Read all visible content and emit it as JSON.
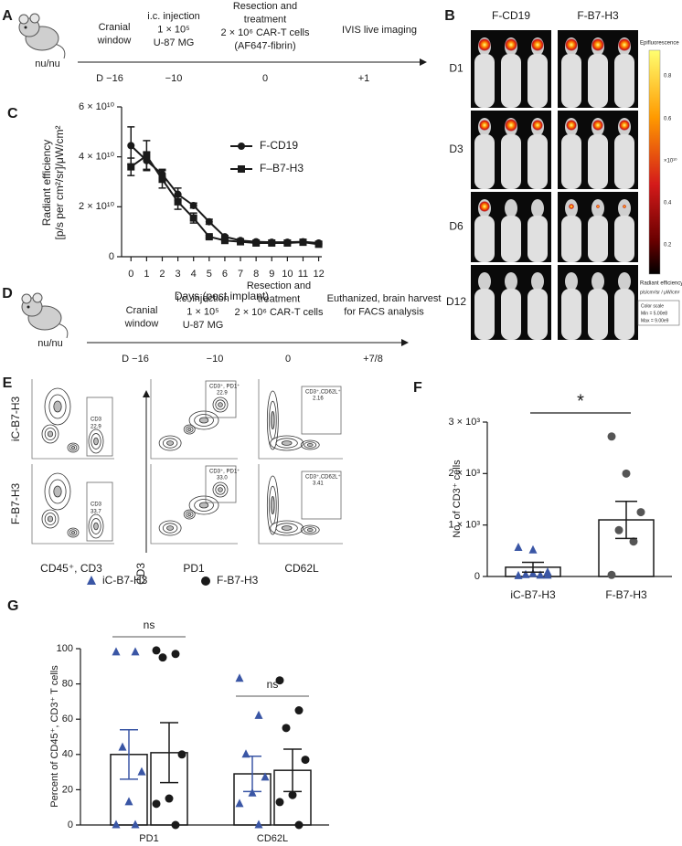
{
  "panels": {
    "A": {
      "label": "A",
      "strain": "nu/nu",
      "steps": [
        {
          "lines": [
            "Cranial",
            "window"
          ],
          "day": "D −16"
        },
        {
          "lines": [
            "i.c. injection",
            "1 × 10⁵",
            "U-87 MG"
          ],
          "day": "−10"
        },
        {
          "lines": [
            "Resection and",
            "treatment",
            "2 × 10⁶ CAR-T cells",
            "(AF647-fibrin)"
          ],
          "day": "0"
        },
        {
          "lines": [
            "IVIS live imaging"
          ],
          "day": "+1"
        }
      ]
    },
    "B": {
      "label": "B",
      "columns": [
        "F-CD19",
        "F-B7-H3"
      ],
      "rows": [
        "D1",
        "D3",
        "D6",
        "D12"
      ],
      "colorbar": {
        "title": "Epifluorescence",
        "ticks": [
          "0.8",
          "0.6",
          "0.4",
          "0.2"
        ],
        "multiplier": "×10¹⁰",
        "unit_title": "Radiant efficiency",
        "unit": "p/s/cm²/sr / μW/cm²",
        "scale_title": "Color scale",
        "min": "Min = 5.00e8",
        "max": "Max = 9.00e9"
      }
    },
    "D": {
      "label": "D",
      "strain": "nu/nu",
      "steps": [
        {
          "lines": [
            "Cranial",
            "window"
          ],
          "day": "D −16"
        },
        {
          "lines": [
            "i.c. injection",
            "1 × 10⁵",
            "U-87 MG"
          ],
          "day": "−10"
        },
        {
          "lines": [
            "Resection and",
            "treatment",
            "2 × 10⁶ CAR-T cells"
          ],
          "day": "0"
        },
        {
          "lines": [
            "Euthanized, brain harvest",
            "for FACS analysis"
          ],
          "day": "+7/8"
        }
      ]
    },
    "E": {
      "label": "E",
      "rows": [
        "iC-B7-H3",
        "F-B7-H3"
      ],
      "x_labels": [
        "CD45⁺, CD3",
        "PD1",
        "CD62L"
      ],
      "y_label": "CD3",
      "gates": [
        [
          {
            "name": "CD3",
            "value": "22.9"
          },
          {
            "name": "CD3⁺, PD1⁺",
            "value": "22.9"
          },
          {
            "name": "CD3⁺,CD62L⁺",
            "value": "2.16"
          }
        ],
        [
          {
            "name": "CD3",
            "value": "33.7"
          },
          {
            "name": "CD3⁺, PD1⁺",
            "value": "33.0"
          },
          {
            "name": "CD3⁺,CD62L⁺",
            "value": "3.41"
          }
        ]
      ]
    }
  },
  "chart_data": [
    {
      "type": "line",
      "panel_label": "C",
      "x_label": "Days (post implant)",
      "y_label": [
        "Radiant efficiency",
        "[p/s per cm²/sr]/μW/cm²"
      ],
      "x": [
        0,
        1,
        2,
        3,
        4,
        5,
        6,
        7,
        8,
        9,
        10,
        11,
        12
      ],
      "xlim": [
        -0.6,
        12.2
      ],
      "xticks": [
        0,
        1,
        2,
        3,
        4,
        5,
        6,
        7,
        8,
        9,
        10,
        11,
        12
      ],
      "ylim": [
        0,
        60000000000
      ],
      "yticks": [
        0,
        {
          "value": 20000000000,
          "label": "2 × 10¹⁰"
        },
        {
          "value": 40000000000,
          "label": "4 × 10¹⁰"
        },
        {
          "value": 60000000000,
          "label": "6 × 10¹⁰"
        }
      ],
      "series": [
        {
          "name": "F-CD19",
          "color": "#1a1a1a",
          "marker": "circle",
          "values": [
            44500000000,
            38500000000,
            33000000000,
            25000000000,
            20500000000,
            14000000000,
            8000000000,
            6500000000,
            6000000000,
            5800000000,
            5800000000,
            6000000000,
            5500000000
          ],
          "errors": [
            7500000000,
            3500000000,
            2000000000,
            2500000000,
            1000000000,
            1000000000,
            500000000,
            500000000,
            300000000,
            300000000,
            300000000,
            500000000,
            500000000
          ]
        },
        {
          "name": "F–B7-H3",
          "color": "#1a1a1a",
          "marker": "square",
          "values": [
            36000000000,
            40500000000,
            31000000000,
            22000000000,
            15500000000,
            8000000000,
            6500000000,
            6000000000,
            5500000000,
            5500000000,
            5500000000,
            5800000000,
            5000000000
          ],
          "errors": [
            3500000000,
            6000000000,
            3500000000,
            3000000000,
            2000000000,
            500000000,
            500000000,
            300000000,
            300000000,
            300000000,
            300000000,
            300000000,
            300000000
          ]
        }
      ]
    },
    {
      "type": "bar-dot",
      "panel_label": "F",
      "y_label": "No. of CD3⁺ cells",
      "annotation": "*",
      "categories": [
        "iC-B7-H3",
        "F-B7-H3"
      ],
      "values": [
        180,
        1100
      ],
      "errors": [
        95,
        360
      ],
      "points": [
        [
          560,
          510,
          80,
          30,
          20,
          10,
          50,
          20
        ],
        [
          2720,
          2000,
          1250,
          900,
          680,
          30
        ]
      ],
      "point_colors": [
        "#3a56a5",
        "#555555"
      ],
      "point_markers": [
        "triangle",
        "circle"
      ],
      "ylim": [
        0,
        3000
      ],
      "yticks": [
        0,
        {
          "value": 1000,
          "label": "1 × 10³"
        },
        {
          "value": 2000,
          "label": "2 × 10³"
        },
        {
          "value": 3000,
          "label": "3 × 10³"
        }
      ]
    },
    {
      "type": "grouped-bar-dot",
      "panel_label": "G",
      "y_label": "Percent of CD45⁺, CD3⁺ T cells",
      "categories": [
        "PD1",
        "CD62L"
      ],
      "annotations": [
        "ns",
        "ns"
      ],
      "ylim": [
        0,
        100
      ],
      "yticks": [
        0,
        20,
        40,
        60,
        80,
        100
      ],
      "series": [
        {
          "name": "iC-B7-H3",
          "color": "#3a56a5",
          "marker": "triangle",
          "values": [
            40,
            29
          ],
          "errors": [
            14,
            10
          ],
          "points": [
            [
              98,
              98,
              44,
              30,
              13,
              0,
              0
            ],
            [
              83,
              62,
              40,
              27,
              18,
              12,
              0
            ]
          ]
        },
        {
          "name": "F-B7-H3",
          "color": "#1a1a1a",
          "marker": "circle",
          "values": [
            41,
            31
          ],
          "errors": [
            17,
            12
          ],
          "points": [
            [
              99,
              97,
              95,
              40,
              15,
              12,
              0
            ],
            [
              82,
              65,
              55,
              37,
              17,
              13,
              0
            ]
          ]
        }
      ]
    }
  ]
}
